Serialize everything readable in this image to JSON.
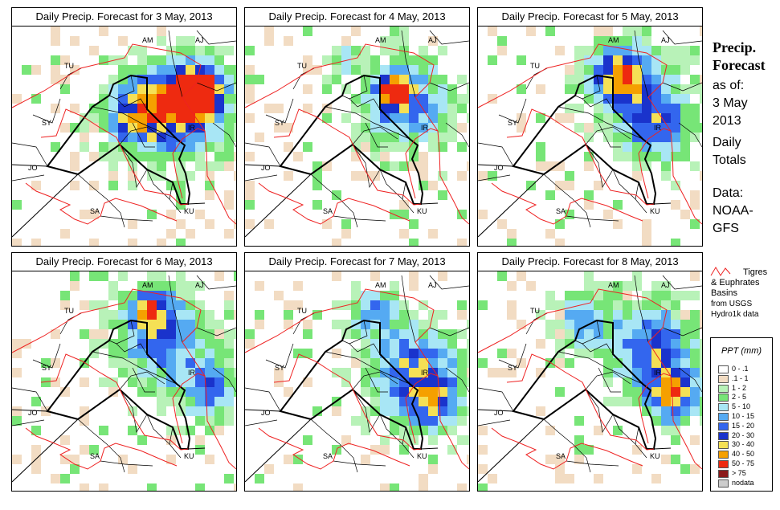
{
  "panels": [
    {
      "title": "Daily Precip. Forecast for  3 May, 2013"
    },
    {
      "title": "Daily Precip. Forecast for  4 May, 2013"
    },
    {
      "title": "Daily Precip. Forecast for  5 May, 2013"
    },
    {
      "title": "Daily Precip. Forecast for  6 May, 2013"
    },
    {
      "title": "Daily Precip. Forecast for  7 May, 2013"
    },
    {
      "title": "Daily Precip. Forecast for  8 May, 2013"
    }
  ],
  "country_labels": [
    "AM",
    "AJ",
    "TU",
    "SY",
    "IR",
    "JO",
    "SA",
    "KU"
  ],
  "side": {
    "title_line1": "Precip.",
    "title_line2": "Forecast",
    "asof": "as of:",
    "date_line1": "3 May",
    "date_line2": "2013",
    "totals_line1": "Daily",
    "totals_line2": "Totals",
    "data_line1": "Data:",
    "data_line2": "NOAA-",
    "data_line3": "GFS"
  },
  "basin_legend": {
    "line1": "Tigres",
    "line2": "& Euphrates",
    "line3": "Basins",
    "line4": "from USGS",
    "line5": "Hydro1k data"
  },
  "legend": {
    "title": "PPT (mm)",
    "classes": [
      {
        "label": "0 - .1",
        "color": "#ffffff"
      },
      {
        "label": ".1 - 1",
        "color": "#f2dcc3"
      },
      {
        "label": "1 - 2",
        "color": "#b8f2b8"
      },
      {
        "label": "2 - 5",
        "color": "#77e577"
      },
      {
        "label": "5 - 10",
        "color": "#a8e6f5"
      },
      {
        "label": "10 - 15",
        "color": "#55aaf2"
      },
      {
        "label": "15 - 20",
        "color": "#3366ee"
      },
      {
        "label": "20 - 30",
        "color": "#1a33cc"
      },
      {
        "label": "30 - 40",
        "color": "#f5e055"
      },
      {
        "label": "40 - 50",
        "color": "#f5a000"
      },
      {
        "label": "50 - 75",
        "color": "#ee2a10"
      },
      {
        "label": "> 75",
        "color": "#8b1a1a"
      },
      {
        "label": "nodata",
        "color": "#cccccc"
      }
    ]
  }
}
